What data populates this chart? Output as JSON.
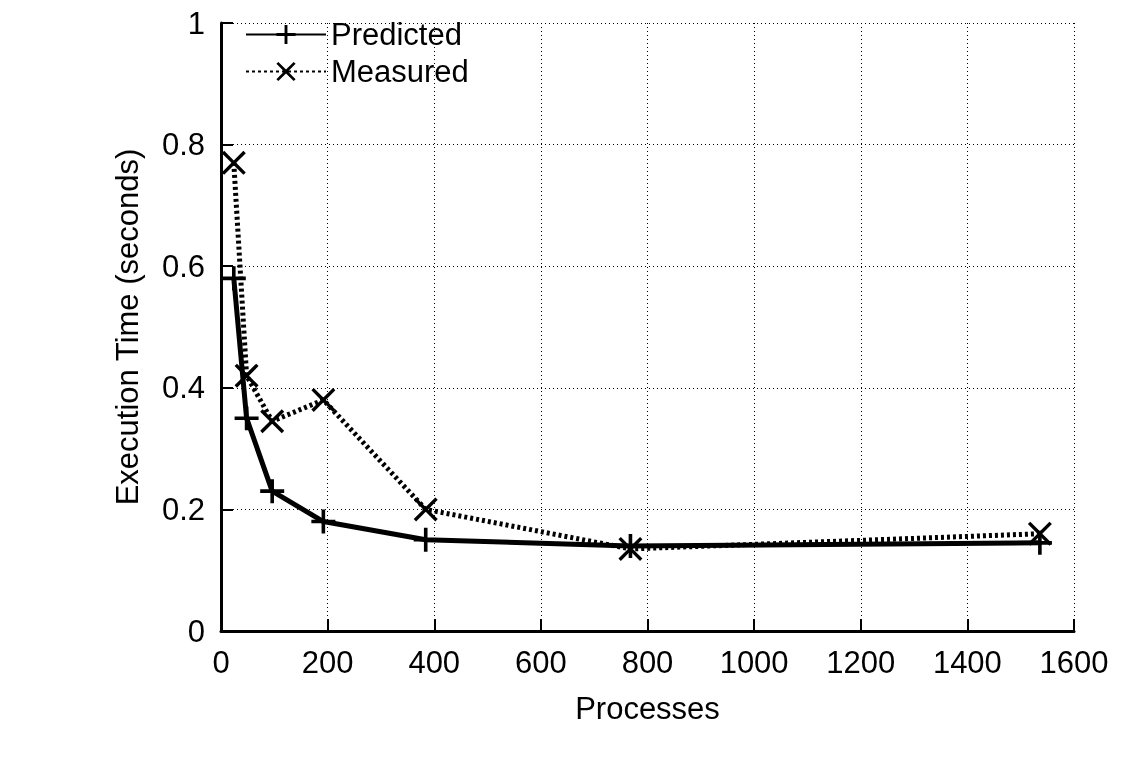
{
  "chart_data": {
    "type": "line",
    "xlabel": "Processes",
    "ylabel": "Execution Time (seconds)",
    "xlim": [
      0,
      1600
    ],
    "xticks": [
      0,
      200,
      400,
      600,
      800,
      1000,
      1200,
      1400,
      1600
    ],
    "ylim": [
      0,
      1
    ],
    "yticks": [
      0,
      0.2,
      0.4,
      0.6,
      0.8,
      1
    ],
    "grid": true,
    "legend": "top left",
    "series": [
      {
        "name": "Predicted",
        "color": "#000000",
        "line_style": "solid",
        "marker": "plus",
        "x": [
          24,
          48,
          96,
          192,
          384,
          768,
          1536
        ],
        "values": [
          0.58,
          0.35,
          0.23,
          0.18,
          0.15,
          0.14,
          0.145
        ]
      },
      {
        "name": "Measured",
        "color": "#000000",
        "line_style": "dotted",
        "marker": "cross",
        "x": [
          24,
          48,
          96,
          192,
          384,
          768,
          1536
        ],
        "values": [
          0.77,
          0.42,
          0.345,
          0.38,
          0.2,
          0.135,
          0.16
        ]
      }
    ]
  }
}
